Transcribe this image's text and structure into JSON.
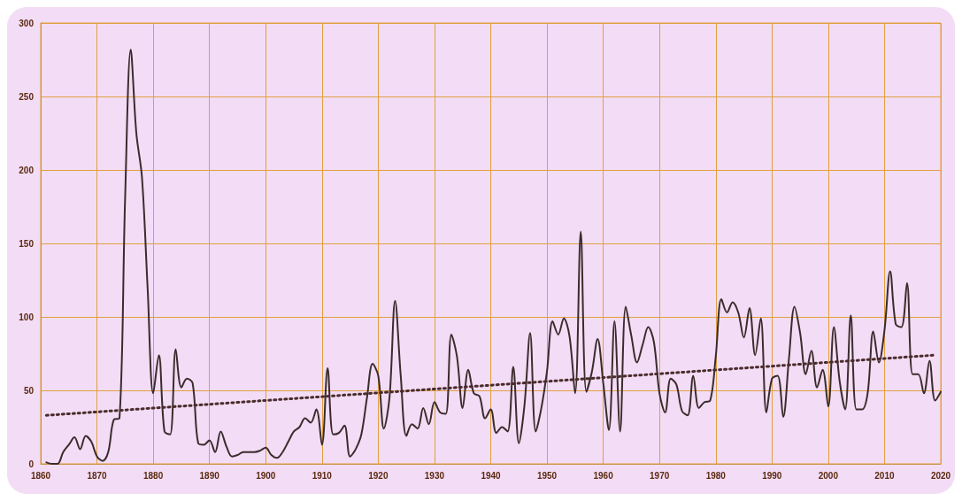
{
  "chart_data": {
    "type": "line",
    "x": [
      1861,
      1862,
      1863,
      1864,
      1865,
      1866,
      1867,
      1868,
      1869,
      1870,
      1871,
      1872,
      1873,
      1874,
      1875,
      1876,
      1877,
      1878,
      1879,
      1880,
      1881,
      1882,
      1883,
      1884,
      1885,
      1886,
      1887,
      1888,
      1889,
      1890,
      1891,
      1892,
      1893,
      1894,
      1895,
      1896,
      1897,
      1898,
      1899,
      1900,
      1901,
      1902,
      1903,
      1904,
      1905,
      1906,
      1907,
      1908,
      1909,
      1910,
      1911,
      1912,
      1913,
      1914,
      1915,
      1916,
      1917,
      1918,
      1919,
      1920,
      1921,
      1922,
      1923,
      1924,
      1925,
      1926,
      1927,
      1928,
      1929,
      1930,
      1931,
      1932,
      1933,
      1934,
      1935,
      1936,
      1937,
      1938,
      1939,
      1940,
      1941,
      1942,
      1943,
      1944,
      1945,
      1946,
      1947,
      1948,
      1949,
      1950,
      1951,
      1952,
      1953,
      1954,
      1955,
      1956,
      1957,
      1958,
      1959,
      1960,
      1961,
      1962,
      1963,
      1964,
      1965,
      1966,
      1967,
      1968,
      1969,
      1970,
      1971,
      1972,
      1973,
      1974,
      1975,
      1976,
      1977,
      1978,
      1979,
      1980,
      1981,
      1982,
      1983,
      1984,
      1985,
      1986,
      1987,
      1988,
      1989,
      1990,
      1991,
      1992,
      1993,
      1994,
      1995,
      1996,
      1997,
      1998,
      1999,
      2000,
      2001,
      2002,
      2003,
      2004,
      2005,
      2006,
      2007,
      2008,
      2009,
      2010,
      2011,
      2012,
      2013,
      2014,
      2015,
      2016,
      2017,
      2018,
      2019,
      2020
    ],
    "series": [
      {
        "color": "#3a2c2c",
        "line_style": "solid",
        "values": [
          1,
          0,
          0,
          8,
          13,
          18,
          10,
          19,
          15,
          5,
          2,
          8,
          30,
          31,
          180,
          282,
          225,
          195,
          120,
          48,
          74,
          22,
          20,
          78,
          52,
          58,
          55,
          14,
          13,
          16,
          8,
          22,
          12,
          5,
          6,
          8,
          8,
          8,
          9,
          11,
          6,
          4,
          8,
          15,
          22,
          25,
          31,
          28,
          37,
          13,
          65,
          20,
          21,
          26,
          5,
          10,
          20,
          45,
          68,
          60,
          24,
          45,
          111,
          60,
          19,
          27,
          24,
          38,
          27,
          42,
          35,
          34,
          88,
          73,
          38,
          64,
          48,
          46,
          31,
          37,
          21,
          25,
          22,
          66,
          14,
          40,
          89,
          22,
          38,
          63,
          97,
          88,
          99,
          87,
          48,
          158,
          49,
          63,
          85,
          55,
          23,
          97,
          22,
          107,
          87,
          69,
          81,
          93,
          83,
          48,
          35,
          58,
          54,
          36,
          33,
          60,
          38,
          42,
          43,
          73,
          112,
          103,
          110,
          103,
          86,
          106,
          74,
          99,
          35,
          58,
          60,
          32,
          71,
          107,
          89,
          61,
          77,
          52,
          64,
          39,
          93,
          57,
          37,
          101,
          37,
          37,
          48,
          90,
          69,
          91,
          131,
          95,
          93,
          123,
          61,
          61,
          48,
          70,
          43,
          49
        ]
      },
      {
        "type": "line",
        "color": "#4a2c2c",
        "line_style": "dotted",
        "x": [
          1861,
          2019
        ],
        "values": [
          33,
          74
        ]
      }
    ],
    "xlim": [
      1860,
      2020
    ],
    "xticks": [
      1860,
      1870,
      1880,
      1890,
      1900,
      1910,
      1920,
      1930,
      1940,
      1950,
      1960,
      1970,
      1980,
      1990,
      2000,
      2010,
      2020
    ],
    "ylim": [
      0,
      300
    ],
    "yticks": [
      0,
      50,
      100,
      150,
      200,
      250,
      300
    ],
    "grid": true,
    "marker": "none"
  }
}
